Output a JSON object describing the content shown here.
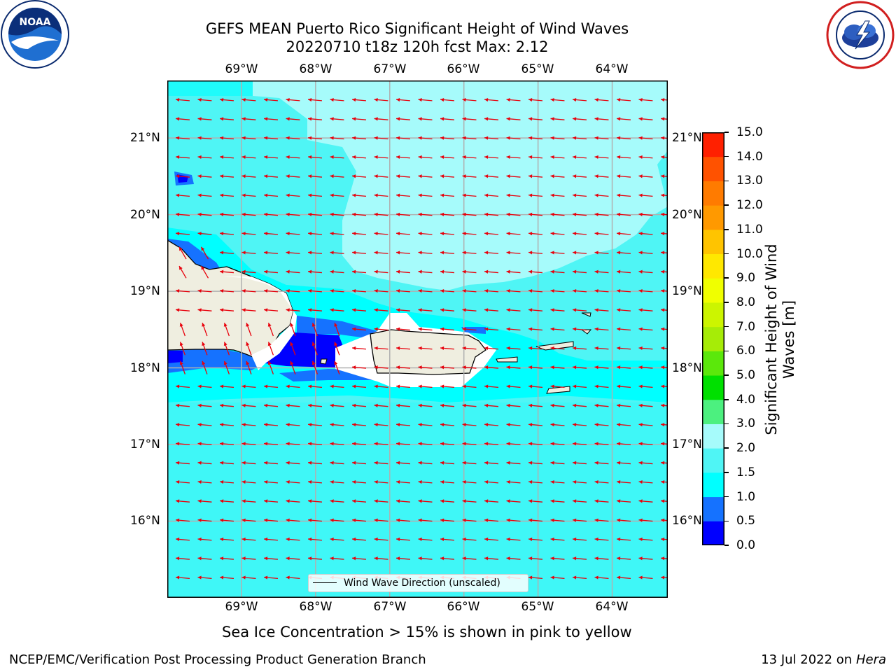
{
  "title": {
    "line1": "GEFS MEAN Puerto Rico Significant Height of Wind Waves",
    "line2": "20220710 t18z 120h fcst   Max: 2.12"
  },
  "logos": {
    "left": {
      "icon": "noaa-logo-icon",
      "text": "NOAA",
      "ring_text": "NATIONAL OCEANIC AND ATMOSPHERIC ADMINISTRATION · U.S. DEPARTMENT OF COMMERCE"
    },
    "right": {
      "icon": "nws-logo-icon",
      "ring_text": "NATIONAL WEATHER SERVICE"
    }
  },
  "map": {
    "longitude_labels": [
      "69°W",
      "68°W",
      "67°W",
      "66°W",
      "65°W",
      "64°W"
    ],
    "latitude_labels": [
      "21°N",
      "20°N",
      "19°N",
      "18°N",
      "17°N",
      "16°N"
    ],
    "extent": {
      "lon_min": -70.0,
      "lon_max": -63.25,
      "lat_min": 15.0,
      "lat_max": 21.75
    },
    "gridlines": true,
    "arrow_color": "#e8000b",
    "land_color": "#efeee0",
    "colors": {
      "wave_1_0_1_5": "#00ffff",
      "wave_1_5_2_0": "#4ff5f5",
      "wave_2_0_3_0": "#a6fbfb",
      "wave_0_5_1_0": "#1572ff",
      "wave_0_0_0_5": "#0000ff"
    },
    "legend_label": "Wind Wave Direction (unscaled)"
  },
  "colorbar": {
    "label": "Significant Height of Wind Waves [m]",
    "tick_labels": [
      "0.0",
      "0.5",
      "1.0",
      "1.5",
      "2.0",
      "3.0",
      "4.0",
      "5.0",
      "6.0",
      "7.0",
      "8.0",
      "9.0",
      "10.0",
      "11.0",
      "12.0",
      "13.0",
      "14.0",
      "15.0"
    ],
    "colors": [
      "#0000ff",
      "#1572ff",
      "#00ffff",
      "#4ff5f5",
      "#a6fbfb",
      "#4cf07f",
      "#00e000",
      "#5be80b",
      "#a6ec07",
      "#ccf500",
      "#f0ff00",
      "#ffe800",
      "#ffc400",
      "#ff9900",
      "#ff7b00",
      "#ff5200",
      "#ff2000"
    ]
  },
  "caption": "Sea Ice Concentration > 15% is shown in pink to yellow",
  "footer": {
    "left": "NCEP/EMC/Verification Post Processing Product Generation Branch",
    "date": "13 Jul 2022 on ",
    "machine": "Hera"
  }
}
